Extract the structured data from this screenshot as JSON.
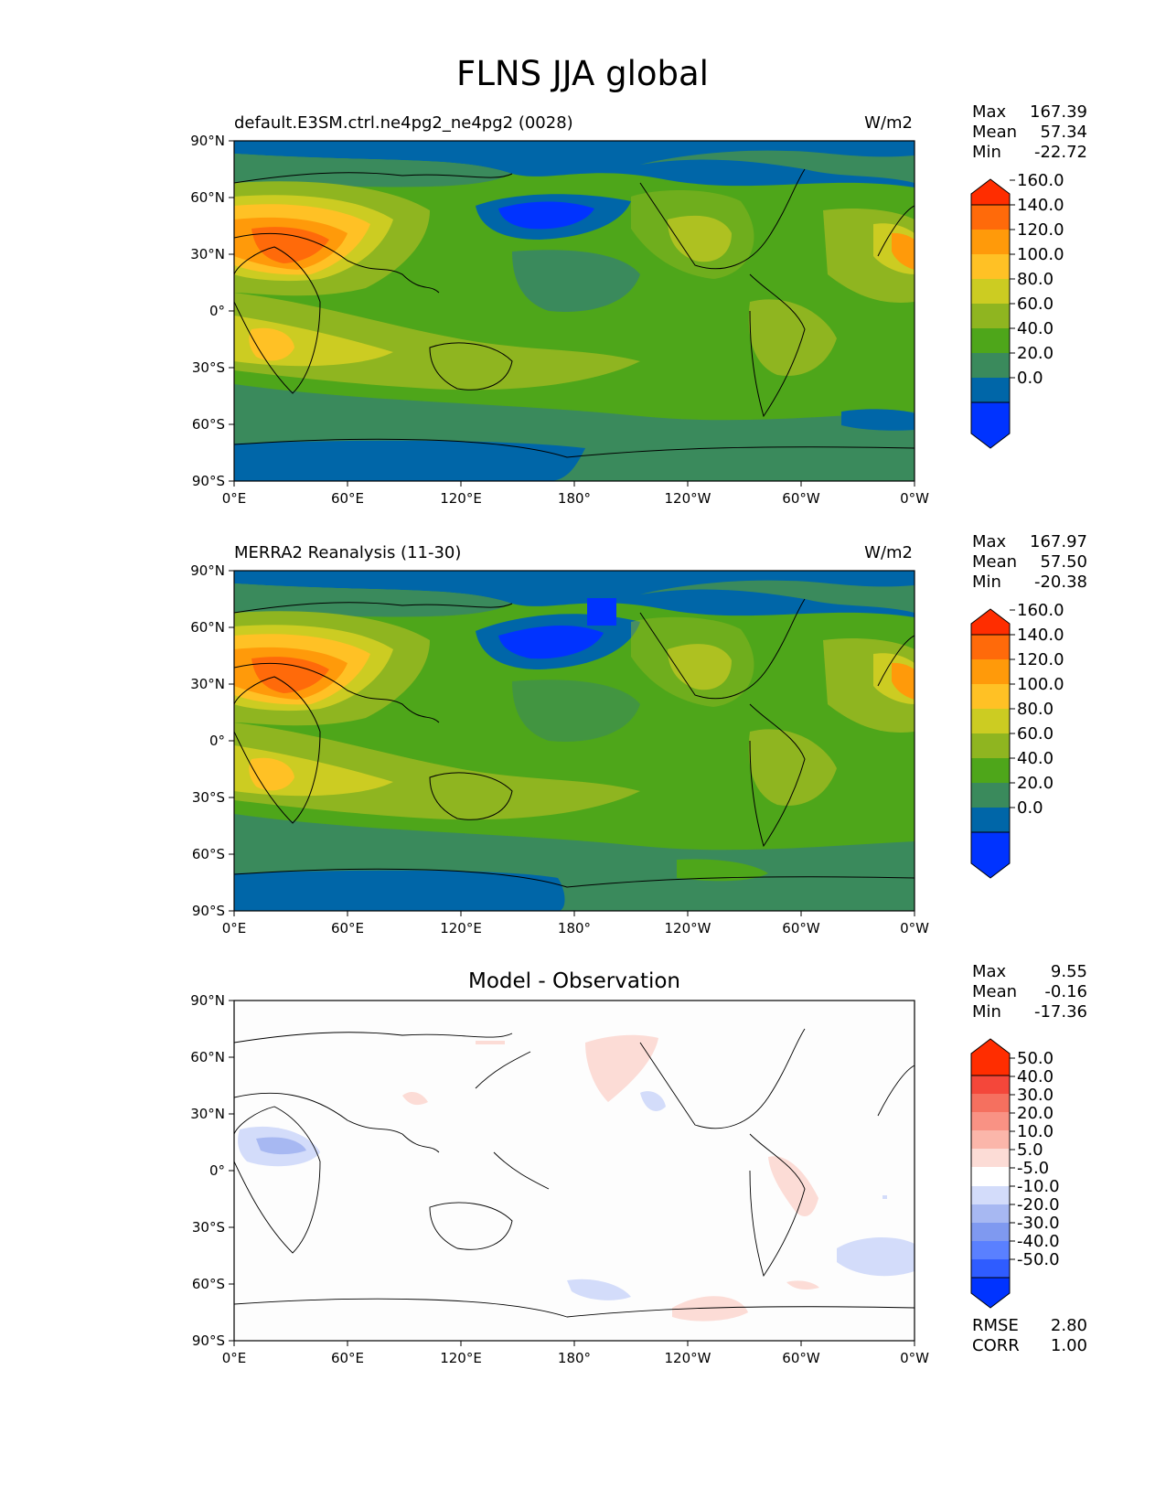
{
  "figure": {
    "title": "FLNS JJA global"
  },
  "colors": {
    "sequential": [
      "#0033ff",
      "#0066a8",
      "#3a8a5c",
      "#4ea61a",
      "#8fb520",
      "#cccc22",
      "#ffc125",
      "#ff9a0a",
      "#ff6a0a",
      "#ff2d00"
    ],
    "diverging": [
      "#0033ff",
      "#2f5cff",
      "#5a80ff",
      "#7f99f0",
      "#a7b8f2",
      "#d3dcfa",
      "#ffffff",
      "#fcdcd6",
      "#fbb6aa",
      "#f99284",
      "#f5705f",
      "#f4473a",
      "#ff2d00"
    ],
    "land_outline": "#000000"
  },
  "chart_data": [
    {
      "type": "heatmap",
      "panel": "test",
      "title_left": "default.E3SM.ctrl.ne4pg2_ne4pg2 (0028)",
      "title_right": "W/m2",
      "stats": {
        "labels": [
          "Max",
          "Mean",
          "Min"
        ],
        "values": [
          "167.39",
          "57.34",
          "-22.72"
        ]
      },
      "colorbar_levels": [
        "0.0",
        "20.0",
        "40.0",
        "60.0",
        "80.0",
        "100.0",
        "120.0",
        "140.0",
        "160.0"
      ],
      "xtick_labels": [
        "0°E",
        "60°E",
        "120°E",
        "180°",
        "120°W",
        "60°W",
        "0°W"
      ],
      "ytick_labels": [
        "90°N",
        "60°N",
        "30°N",
        "0°",
        "30°S",
        "60°S",
        "90°S"
      ],
      "xlim": [
        0,
        360
      ],
      "ylim": [
        -90,
        90
      ]
    },
    {
      "type": "heatmap",
      "panel": "reference",
      "title_left": "MERRA2 Reanalysis (11-30)",
      "title_right": "W/m2",
      "stats": {
        "labels": [
          "Max",
          "Mean",
          "Min"
        ],
        "values": [
          "167.97",
          "57.50",
          "-20.38"
        ]
      },
      "colorbar_levels": [
        "0.0",
        "20.0",
        "40.0",
        "60.0",
        "80.0",
        "100.0",
        "120.0",
        "140.0",
        "160.0"
      ],
      "xtick_labels": [
        "0°E",
        "60°E",
        "120°E",
        "180°",
        "120°W",
        "60°W",
        "0°W"
      ],
      "ytick_labels": [
        "90°N",
        "60°N",
        "30°N",
        "0°",
        "30°S",
        "60°S",
        "90°S"
      ],
      "xlim": [
        0,
        360
      ],
      "ylim": [
        -90,
        90
      ]
    },
    {
      "type": "heatmap",
      "panel": "difference",
      "title_center": "Model - Observation",
      "stats": {
        "labels": [
          "Max",
          "Mean",
          "Min"
        ],
        "values": [
          "9.55",
          "-0.16",
          "-17.36"
        ]
      },
      "extra_stats": {
        "labels": [
          "RMSE",
          "CORR"
        ],
        "values": [
          "2.80",
          "1.00"
        ]
      },
      "colorbar_levels": [
        "-50.0",
        "-40.0",
        "-30.0",
        "-20.0",
        "-10.0",
        "-5.0",
        "5.0",
        "10.0",
        "20.0",
        "30.0",
        "40.0",
        "50.0"
      ],
      "xtick_labels": [
        "0°E",
        "60°E",
        "120°E",
        "180°",
        "120°W",
        "60°W",
        "0°W"
      ],
      "ytick_labels": [
        "90°N",
        "60°N",
        "30°N",
        "0°",
        "30°S",
        "60°S",
        "90°S"
      ],
      "xlim": [
        0,
        360
      ],
      "ylim": [
        -90,
        90
      ]
    }
  ]
}
